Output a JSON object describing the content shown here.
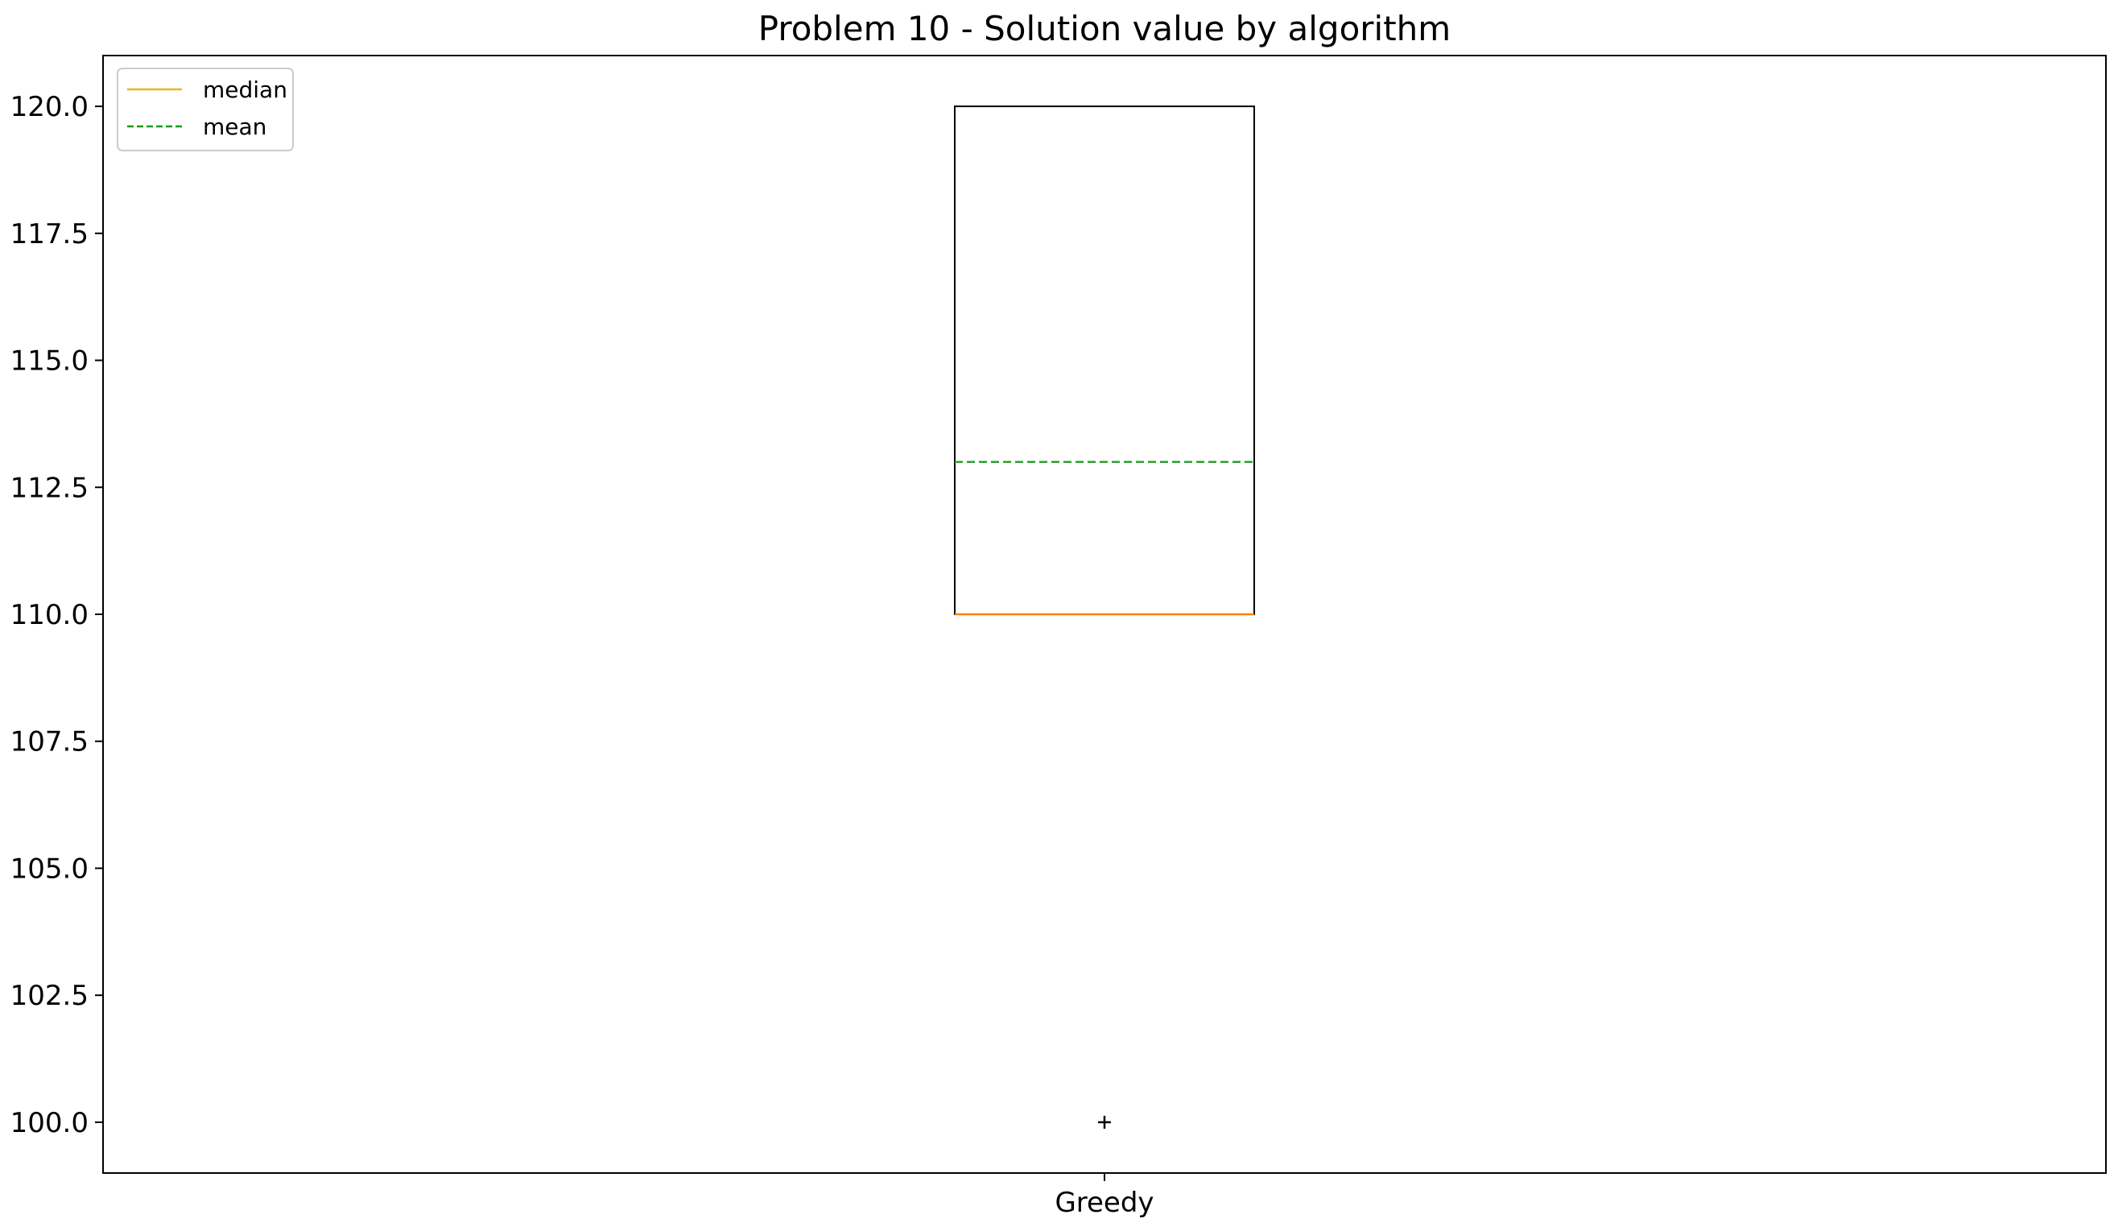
{
  "chart_data": {
    "type": "box",
    "title": "Problem 10 - Solution value by algorithm",
    "xlabel": "",
    "ylabel": "",
    "categories": [
      "Greedy"
    ],
    "boxes": [
      {
        "category": "Greedy",
        "whisker_low": 110.0,
        "q1": 110.0,
        "median": 110.0,
        "mean": 113.0,
        "q3": 120.0,
        "whisker_high": 120.0,
        "outliers": [
          100.0
        ]
      }
    ],
    "y_ticks": [
      100.0,
      102.5,
      105.0,
      107.5,
      110.0,
      112.5,
      115.0,
      117.5,
      120.0
    ],
    "ylim": [
      99.0,
      121.0
    ],
    "grid": false,
    "legend": {
      "placement": "top-left",
      "entries": [
        {
          "label": "median",
          "color": "#ff7f0e",
          "style": "solid"
        },
        {
          "label": "mean",
          "color": "#2ca02c",
          "style": "dashed"
        }
      ]
    },
    "colors": {
      "box": "#000000",
      "median": "#ff7f0e",
      "mean": "#2ca02c",
      "legend_median": "#f2b21a",
      "legend_mean": "#1a9a1a"
    }
  }
}
